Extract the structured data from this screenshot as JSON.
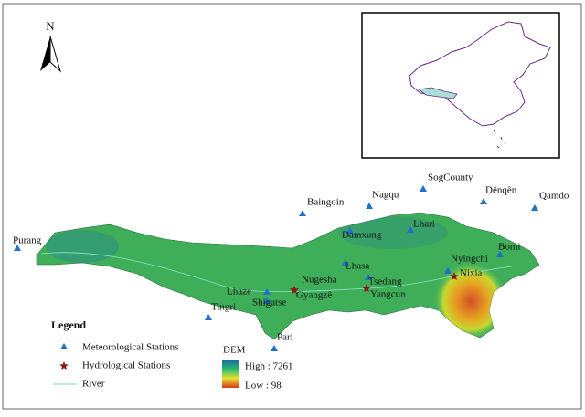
{
  "map": {
    "north": "N",
    "meteorological_stations": [
      "Purang",
      "Baingoin",
      "Nagqu",
      "SogCounty",
      "Dênqên",
      "Qamdo",
      "Damxung",
      "Lhari",
      "Bomi",
      "Nyingchi",
      "Lhasa",
      "Tsedang",
      "Lhaze",
      "Shigatse",
      "Tingri",
      "Pari"
    ],
    "hydrological_stations": [
      "Nugesha",
      "Gyangzê",
      "Yangcun",
      "Nixia"
    ],
    "legend": {
      "title": "Legend",
      "meteorological": "Meteorological Stations",
      "hydrological": "Hydrological Stations",
      "river": "River",
      "dem_title": "DEM",
      "dem_high": "High : 7261",
      "dem_low": "Low : 98"
    }
  }
}
